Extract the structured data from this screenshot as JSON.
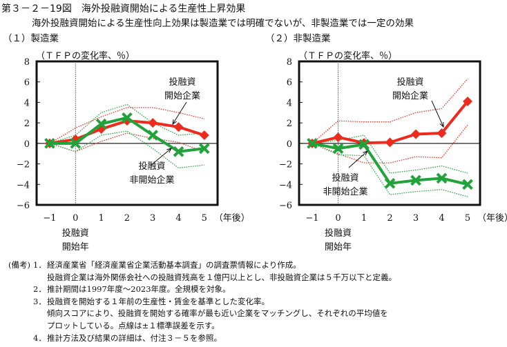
{
  "figure": {
    "title": "第３－２－19図　海外投融資開始による生産性上昇効果",
    "subtitle": "海外投融資開始による生産性向上効果は製造業では明確でないが、非製造業では一定の効果"
  },
  "chart_data": [
    {
      "type": "line",
      "title": "（１）製造業",
      "ylabel": "（ＴＦＰの変化率、％）",
      "xlabel": "（年後）",
      "x": [
        -1,
        0,
        1,
        2,
        3,
        4,
        5
      ],
      "x_tick_labels": [
        "-1",
        "0",
        "1",
        "2",
        "3",
        "4",
        "5"
      ],
      "x_marker_label": [
        "投融資",
        "開始年"
      ],
      "ylim": [
        -6,
        8
      ],
      "y_ticks": [
        8,
        6,
        4,
        2,
        0,
        -2,
        -4,
        -6
      ],
      "grid": false,
      "series": [
        {
          "name": "投融資開始企業",
          "color": "#ee2a1e",
          "marker": "diamond",
          "values": [
            0,
            0.4,
            1.4,
            2.2,
            2.0,
            1.6,
            0.8
          ],
          "upper": [
            0,
            1.5,
            2.6,
            3.5,
            3.5,
            3.0,
            2.4
          ],
          "lower": [
            0,
            -0.8,
            0.2,
            1.0,
            0.5,
            0.1,
            -0.8
          ]
        },
        {
          "name": "投融資非開始企業",
          "color": "#1fa33a",
          "marker": "cross",
          "values": [
            0,
            0.0,
            1.9,
            2.5,
            0.8,
            -0.8,
            -0.5
          ],
          "upper": [
            0,
            0.8,
            3.0,
            3.8,
            2.0,
            0.8,
            1.0
          ],
          "lower": [
            0,
            -0.8,
            0.8,
            1.2,
            -0.5,
            -2.4,
            -2.1
          ]
        }
      ],
      "annotations": [
        {
          "lines": [
            "投融資",
            "開始企業"
          ],
          "target_series": 0,
          "target_x": 4
        },
        {
          "lines": [
            "投融資",
            "非開始企業"
          ],
          "target_series": 1,
          "target_x": 4
        }
      ]
    },
    {
      "type": "line",
      "title": "（２）非製造業",
      "ylabel": "（ＴＦＰの変化率、％）",
      "xlabel": "（年後）",
      "x": [
        -1,
        0,
        1,
        2,
        3,
        4,
        5
      ],
      "x_tick_labels": [
        "-1",
        "0",
        "1",
        "2",
        "3",
        "4",
        "5"
      ],
      "x_marker_label": [
        "投融資",
        "開始年"
      ],
      "ylim": [
        -6,
        8
      ],
      "y_ticks": [
        8,
        6,
        4,
        2,
        0,
        -2,
        -4,
        -6
      ],
      "grid": false,
      "series": [
        {
          "name": "投融資開始企業",
          "color": "#ee2a1e",
          "marker": "diamond",
          "values": [
            0,
            0.6,
            0.05,
            0.1,
            0.9,
            1.0,
            4.1
          ],
          "upper": [
            0,
            2.2,
            2.1,
            2.1,
            3.0,
            3.4,
            6.3
          ],
          "lower": [
            0,
            -1.0,
            -1.9,
            -1.9,
            -1.3,
            -1.4,
            1.8
          ]
        },
        {
          "name": "投融資非開始企業",
          "color": "#1fa33a",
          "marker": "cross",
          "values": [
            0,
            -0.5,
            -0.1,
            -3.9,
            -3.6,
            -3.4,
            -4.0
          ],
          "upper": [
            0,
            0.3,
            0.8,
            -2.9,
            -2.6,
            -2.2,
            -2.9
          ],
          "lower": [
            0,
            -1.1,
            -1.2,
            -5.0,
            -4.7,
            -4.5,
            -5.2
          ]
        }
      ],
      "annotations": [
        {
          "lines": [
            "投融資",
            "開始企業"
          ],
          "target_series": 0,
          "target_x": 4
        },
        {
          "lines": [
            "投融資",
            "非開始企業"
          ],
          "target_series": 1,
          "target_x": 1
        }
      ]
    }
  ],
  "notes": {
    "label": "(備考)",
    "items": [
      {
        "num": "1．",
        "lines": [
          "経済産業省「経済産業省企業活動基本調査」の調査票情報により作成。",
          "投融資企業は海外関係会社への投融資残高を１億円以上とし、非投融資企業は５千万以下と定義。"
        ]
      },
      {
        "num": "2．",
        "lines": [
          "推計期間は1997年度～2023年度。全規模を対象。"
        ]
      },
      {
        "num": "3．",
        "lines": [
          "投融資を開始する１年前の生産性・賃金を基準とした変化率。",
          "傾向スコアにより、投融資を開始する確率が最も近い企業をマッチングし、それぞれの平均値を",
          "プロットしている。点線は±１標準誤差を示す。"
        ]
      },
      {
        "num": "4．",
        "lines": [
          "推計方法及び結果の詳細は、付注３－５を参照。"
        ]
      }
    ]
  }
}
